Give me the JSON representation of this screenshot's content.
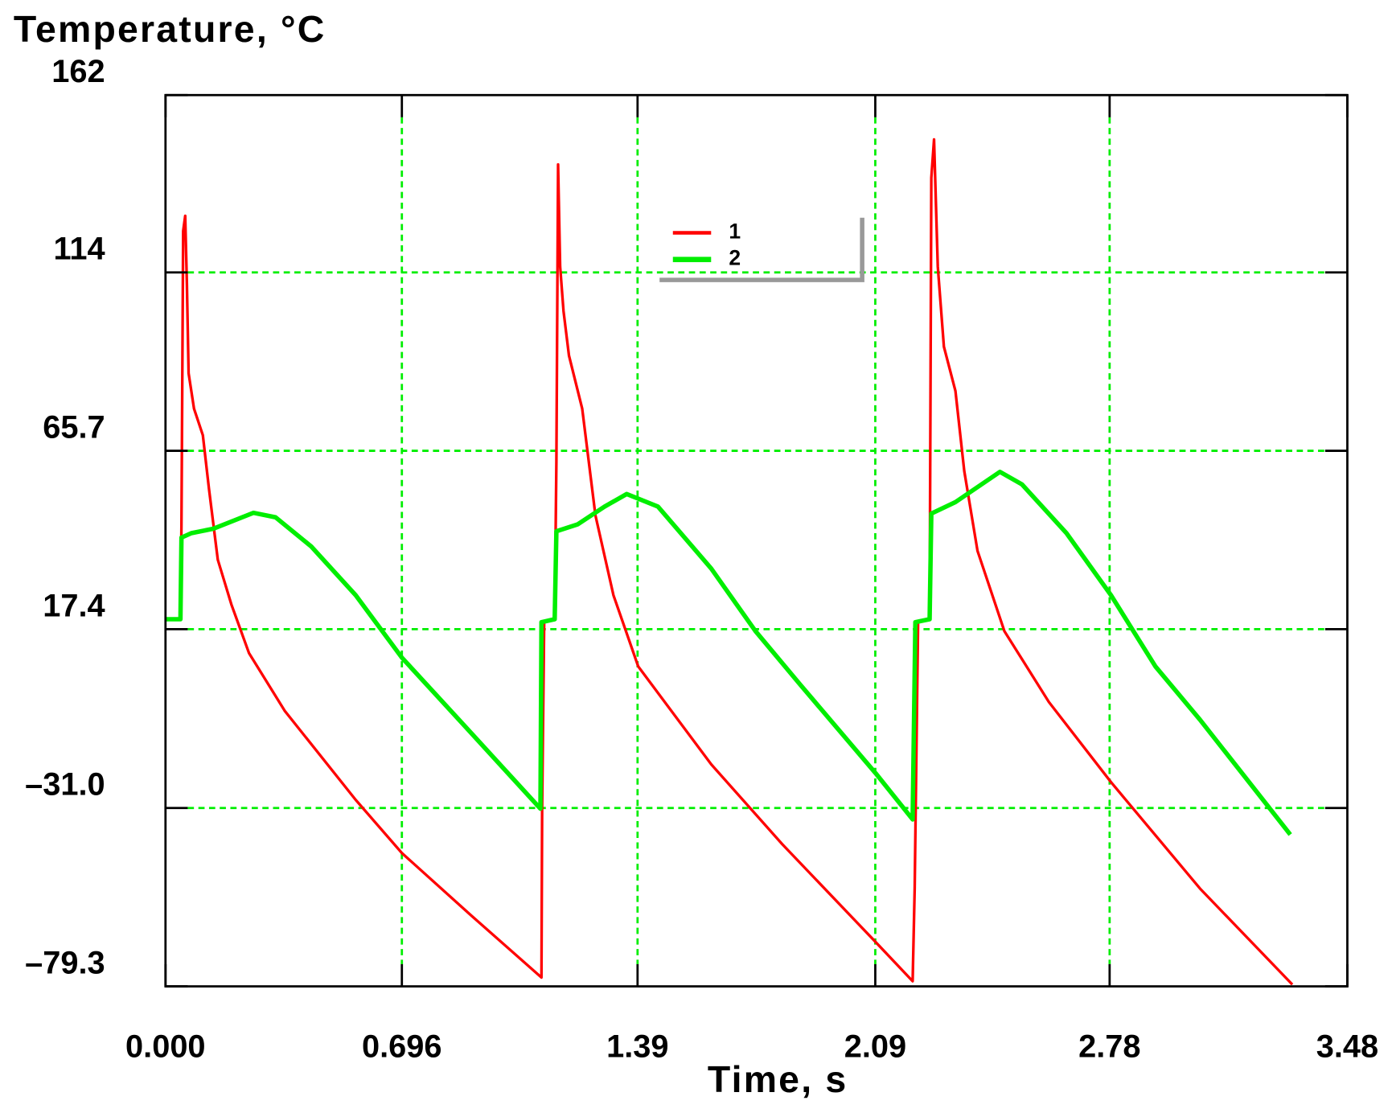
{
  "chart_data": {
    "type": "line",
    "title": "Temperature, °C",
    "x_label": "Time, s",
    "xlim": [
      0,
      3.48
    ],
    "xticks": [
      {
        "value": 0,
        "label": "0.000"
      },
      0.696,
      1.39,
      2.09,
      2.78,
      3.48
    ],
    "ylim": [
      -79.3,
      162
    ],
    "yticks": [
      {
        "value": -79.3,
        "label": "–79.3"
      },
      {
        "value": -31.0,
        "label": "–31.0"
      },
      17.4,
      65.7,
      114,
      162
    ],
    "grid": true,
    "legend": "top-center",
    "series": [
      {
        "name": "1",
        "color": "#ff0000",
        "x": [
          0.0,
          0.044,
          0.047,
          0.052,
          0.058,
          0.063,
          0.068,
          0.084,
          0.11,
          0.128,
          0.154,
          0.194,
          0.246,
          0.351,
          0.56,
          0.696,
          0.9,
          1.107,
          1.109,
          1.115,
          1.146,
          1.151,
          1.156,
          1.162,
          1.172,
          1.188,
          1.227,
          1.266,
          1.319,
          1.392,
          1.607,
          1.816,
          2.091,
          2.2,
          2.206,
          2.216,
          2.25,
          2.255,
          2.263,
          2.274,
          2.292,
          2.326,
          2.352,
          2.391,
          2.47,
          2.601,
          2.784,
          3.046,
          3.318
        ],
        "values": [
          20.1,
          20.1,
          45.8,
          125.2,
          129.3,
          110.8,
          86.7,
          77.1,
          69.9,
          55.4,
          36.2,
          24.1,
          10.9,
          -4.7,
          -28.8,
          -43.2,
          -60.1,
          -76.9,
          -31.2,
          19.3,
          20.1,
          62.6,
          143.2,
          115.6,
          103.5,
          91.5,
          77.1,
          48.2,
          26.6,
          7.3,
          -19.2,
          -40.8,
          -67.3,
          -77.9,
          -52.8,
          19.3,
          20.1,
          139.6,
          150.0,
          115.6,
          93.9,
          81.9,
          60.2,
          38.6,
          16.9,
          -2.3,
          -24.0,
          -52.8,
          -78.8
        ]
      },
      {
        "name": "2",
        "color": "#00ee00",
        "x": [
          0.0,
          0.044,
          0.047,
          0.076,
          0.141,
          0.259,
          0.324,
          0.429,
          0.56,
          0.696,
          0.9,
          1.104,
          1.107,
          1.146,
          1.151,
          1.214,
          1.293,
          1.358,
          1.45,
          1.607,
          1.737,
          1.868,
          2.091,
          2.2,
          2.208,
          2.25,
          2.255,
          2.326,
          2.457,
          2.522,
          2.653,
          2.784,
          2.915,
          3.046,
          3.312
        ],
        "values": [
          20.1,
          20.1,
          42.2,
          43.4,
          44.6,
          48.9,
          47.7,
          39.8,
          26.6,
          9.7,
          -10.7,
          -31.2,
          19.3,
          20.1,
          43.9,
          45.8,
          50.6,
          54.0,
          50.6,
          33.8,
          16.9,
          2.5,
          -21.6,
          -34.1,
          19.3,
          20.1,
          48.7,
          51.8,
          60.0,
          56.6,
          43.4,
          26.6,
          7.3,
          -7.1,
          -38.2
        ]
      }
    ]
  }
}
